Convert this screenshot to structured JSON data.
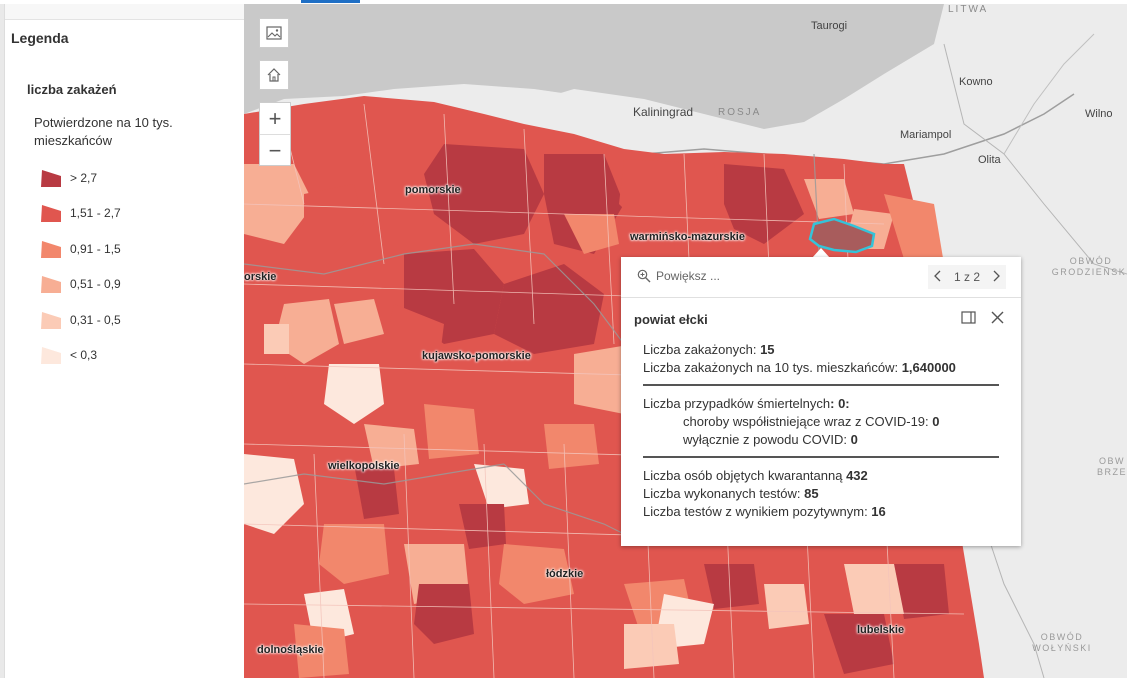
{
  "legend": {
    "title": "Legenda",
    "layer_title": "liczba zakażeń",
    "field_label": "Potwierdzone na 10 tys. mieszkańców",
    "items": [
      {
        "label": "> 2,7",
        "color": "#b83a42"
      },
      {
        "label": "1,51 - 2,7",
        "color": "#e0564f"
      },
      {
        "label": "0,91 - 1,5",
        "color": "#f2876c"
      },
      {
        "label": "0,51 - 0,9",
        "color": "#f7ae94"
      },
      {
        "label": "0,31 - 0,5",
        "color": "#fbcbb6"
      },
      {
        "label": "< 0,3",
        "color": "#fde8dd"
      }
    ]
  },
  "map": {
    "voivodeships": [
      "pomorskie",
      "warmińsko-mazurskie",
      "kujawsko-pomorskie",
      "wielkopolskie",
      "łódzkie",
      "lubelskie",
      "dolnośląskie",
      "orskie"
    ],
    "cities": [
      "Taurogi",
      "Kowno",
      "Kaliningrad",
      "Mariampol",
      "Olita",
      "Wilno"
    ],
    "countries": [
      "LITWA",
      "ROSJA"
    ],
    "regions": [
      "OBWÓD GRODZIEŃSKI",
      "OBW BRZE",
      "OBWÓD WOŁYŃSKI"
    ],
    "colors": {
      "water": "#c9c9c9",
      "land": "#ececec",
      "border": "#9e9e9e",
      "highlight": "#34c3d9"
    }
  },
  "popup": {
    "zoom_label": "Powiększ ...",
    "pager": "1 z 2",
    "title": "powiat ełcki",
    "group1": [
      {
        "label": "Liczba zakażonych: ",
        "value": "15"
      },
      {
        "label": "Liczba zakażonych na 10 tys. mieszkańców: ",
        "value": "1,640000"
      }
    ],
    "deaths_label": "Liczba przypadków śmiertelnych",
    "deaths_value": ": 0:",
    "group2": [
      {
        "label": "choroby współistniejące wraz z COVID-19: ",
        "value": "0"
      },
      {
        "label": "wyłącznie z powodu COVID: ",
        "value": "0"
      }
    ],
    "group3": [
      {
        "label": "Liczba osób objętych kwarantanną ",
        "value": "432"
      },
      {
        "label": "Liczba wykonanych testów: ",
        "value": "85"
      },
      {
        "label": "Liczba testów z wynikiem pozytywnym: ",
        "value": "16"
      }
    ]
  }
}
